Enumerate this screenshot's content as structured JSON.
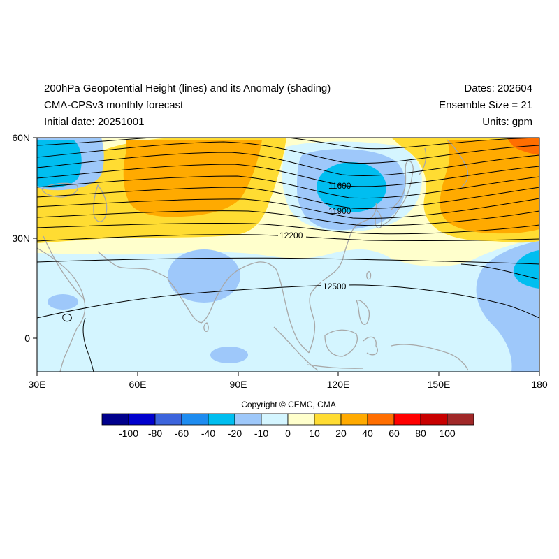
{
  "header": {
    "title_line1": "200hPa Geopotential Height (lines) and its Anomaly (shading)",
    "title_line2": "CMA-CPSv3 monthly forecast",
    "title_line3": "Initial date: 20251001",
    "dates": "Dates: 202604",
    "ensemble": "Ensemble Size = 21",
    "units": "Units: gpm"
  },
  "map": {
    "lon_ticks": [
      "30E",
      "60E",
      "90E",
      "120E",
      "150E",
      "180"
    ],
    "lat_ticks": [
      "60N",
      "30N",
      "0"
    ],
    "contour_labels": [
      "11600",
      "11900",
      "12200",
      "12500"
    ]
  },
  "copyright": "Copyright © CEMC, CMA",
  "colorbar": {
    "labels": [
      "-100",
      "-80",
      "-60",
      "-40",
      "-20",
      "-10",
      "0",
      "10",
      "20",
      "40",
      "60",
      "80",
      "100"
    ],
    "colors": [
      "#00008c",
      "#0000cd",
      "#3c64dc",
      "#1e8cf0",
      "#00bef0",
      "#9ec8fa",
      "#d4f5ff",
      "#ffffcc",
      "#ffdc32",
      "#ffaa00",
      "#ff6e00",
      "#ff0000",
      "#c80000",
      "#a02828"
    ]
  },
  "shading_colors": {
    "pos10": "#ffffcc",
    "pos20": "#ffdc32",
    "pos40": "#ffaa00",
    "pos60": "#ff6e00",
    "neg0": "#d4f5ff",
    "neg10": "#9ec8fa",
    "neg20": "#00bef0",
    "coast": "#a8a8a8"
  }
}
